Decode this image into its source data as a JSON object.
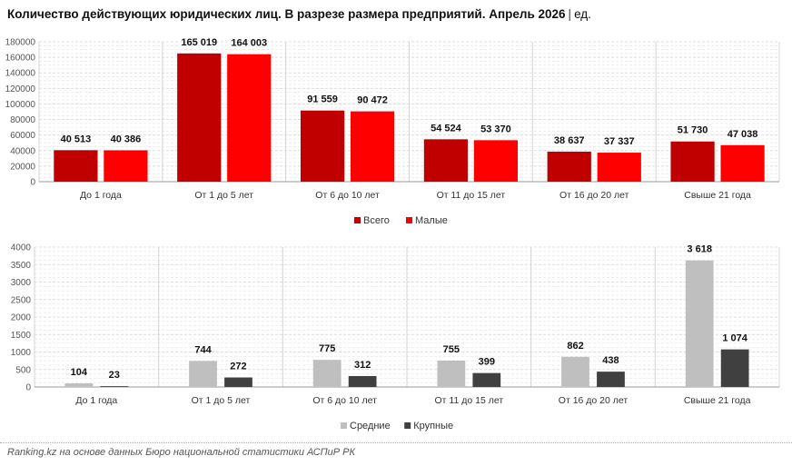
{
  "header": {
    "title": "Количество действующих юридических лиц. В разрезе размера предприятий. Апрель 2026",
    "separator": "|",
    "unit": "ед."
  },
  "source": "Ranking.kz на основе данных Бюро национальной статистики АСПиР РК",
  "chart_data": [
    {
      "type": "bar",
      "categories": [
        "До 1 года",
        "От 1 до 5 лет",
        "От 6 до 10 лет",
        "От 11 до 15 лет",
        "От 16 до 20 лет",
        "Свыше 21 года"
      ],
      "series": [
        {
          "name": "Всего",
          "values": [
            40513,
            165019,
            91559,
            54524,
            38637,
            51730
          ],
          "labels": [
            "40 513",
            "165 019",
            "91 559",
            "54 524",
            "38 637",
            "51 730"
          ],
          "color": "#c00000"
        },
        {
          "name": "Малые",
          "values": [
            40386,
            164003,
            90472,
            53370,
            37337,
            47038
          ],
          "labels": [
            "40 386",
            "164 003",
            "90 472",
            "53 370",
            "37 337",
            "47 038"
          ],
          "color": "#ff0000"
        }
      ],
      "yticks": [
        "0",
        "20000",
        "40000",
        "60000",
        "80000",
        "100000",
        "120000",
        "140000",
        "160000",
        "180000"
      ],
      "ylim": [
        0,
        180000
      ],
      "ystep": 20000,
      "grid": true,
      "legend": "bottom"
    },
    {
      "type": "bar",
      "categories": [
        "До 1 года",
        "От 1 до 5 лет",
        "От 6 до 10 лет",
        "От 11 до 15 лет",
        "От 16 до 20 лет",
        "Свыше 21 года"
      ],
      "series": [
        {
          "name": "Средние",
          "values": [
            104,
            744,
            775,
            755,
            862,
            3618
          ],
          "labels": [
            "104",
            "744",
            "775",
            "755",
            "862",
            "3 618"
          ],
          "color": "#bfbfbf"
        },
        {
          "name": "Крупные",
          "values": [
            23,
            272,
            312,
            399,
            438,
            1074
          ],
          "labels": [
            "23",
            "272",
            "312",
            "399",
            "438",
            "1 074"
          ],
          "color": "#404040"
        }
      ],
      "yticks": [
        "0",
        "500",
        "1000",
        "1500",
        "2000",
        "2500",
        "3000",
        "3500",
        "4000"
      ],
      "ylim": [
        0,
        4000
      ],
      "ystep": 500,
      "grid": true,
      "legend": "bottom"
    }
  ]
}
